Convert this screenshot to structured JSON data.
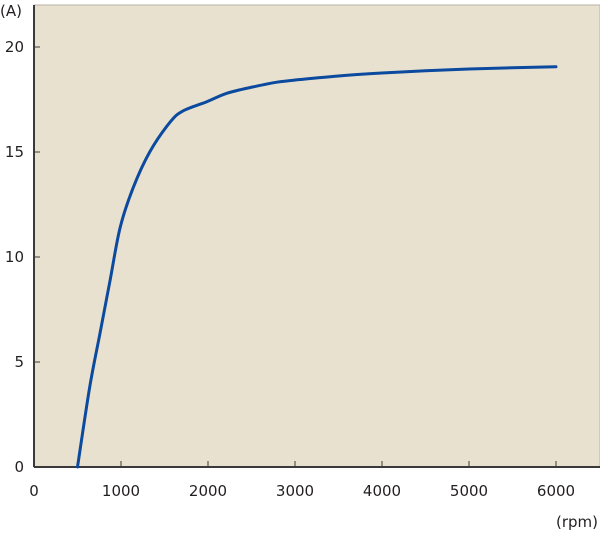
{
  "chart_data": {
    "type": "line",
    "title": "",
    "xlabel": "(rpm)",
    "ylabel": "(A)",
    "xlim": [
      0,
      6500
    ],
    "ylim": [
      0,
      21.8
    ],
    "x_ticks": [
      0,
      1000,
      2000,
      3000,
      4000,
      5000,
      6000
    ],
    "y_ticks": [
      0,
      5,
      10,
      15,
      20
    ],
    "grid": false,
    "series": [
      {
        "x": [
          500,
          640,
          760,
          875,
          990,
          1140,
          1330,
          1560,
          1710,
          1990,
          2220,
          2520,
          2800,
          3060,
          3500,
          4000,
          4500,
          5000,
          5500,
          6000
        ],
        "y": [
          0,
          3.8,
          6.4,
          8.9,
          11.4,
          13.3,
          15.0,
          16.4,
          16.95,
          17.4,
          17.8,
          18.1,
          18.33,
          18.45,
          18.62,
          18.76,
          18.87,
          18.95,
          19.01,
          19.06
        ]
      }
    ],
    "colors": {
      "background": "#e9e1cf",
      "line": "#0b4a9e",
      "axis": "#3a3a3a"
    }
  }
}
